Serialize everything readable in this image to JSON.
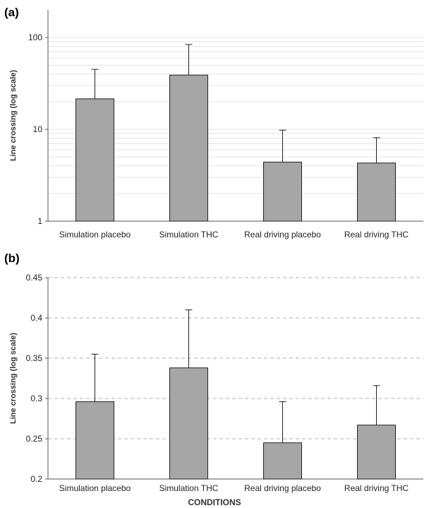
{
  "chart_data": [
    {
      "panel": "(a)",
      "type": "bar",
      "categories": [
        "Simulation placebo",
        "Simulation THC",
        "Real driving placebo",
        "Real driving THC"
      ],
      "values": [
        21.5,
        39.0,
        4.4,
        4.3
      ],
      "error_upper": [
        45.0,
        84.0,
        9.8,
        8.1
      ],
      "ylabel": "Line crossing (log scale)",
      "xlabel": "",
      "yscale": "log",
      "ylim": [
        1,
        200
      ],
      "yticks": [
        "1",
        "10",
        "100"
      ],
      "grid": "minor log gridlines, solid light gray",
      "bar_color": "#a6a6a6"
    },
    {
      "panel": "(b)",
      "type": "bar",
      "categories": [
        "Simulation placebo",
        "Simulation THC",
        "Real driving placebo",
        "Real driving THC"
      ],
      "values": [
        0.296,
        0.338,
        0.245,
        0.267
      ],
      "error_upper": [
        0.355,
        0.41,
        0.296,
        0.316
      ],
      "ylabel": "Line crossing (log scale)",
      "xlabel": "CONDITIONS",
      "yscale": "linear",
      "ylim": [
        0.2,
        0.45
      ],
      "yticks": [
        "0.2",
        "0.25",
        "0.3",
        "0.35",
        "0.4",
        "0.45"
      ],
      "grid": "dashed gray major gridlines",
      "bar_color": "#a6a6a6"
    }
  ]
}
